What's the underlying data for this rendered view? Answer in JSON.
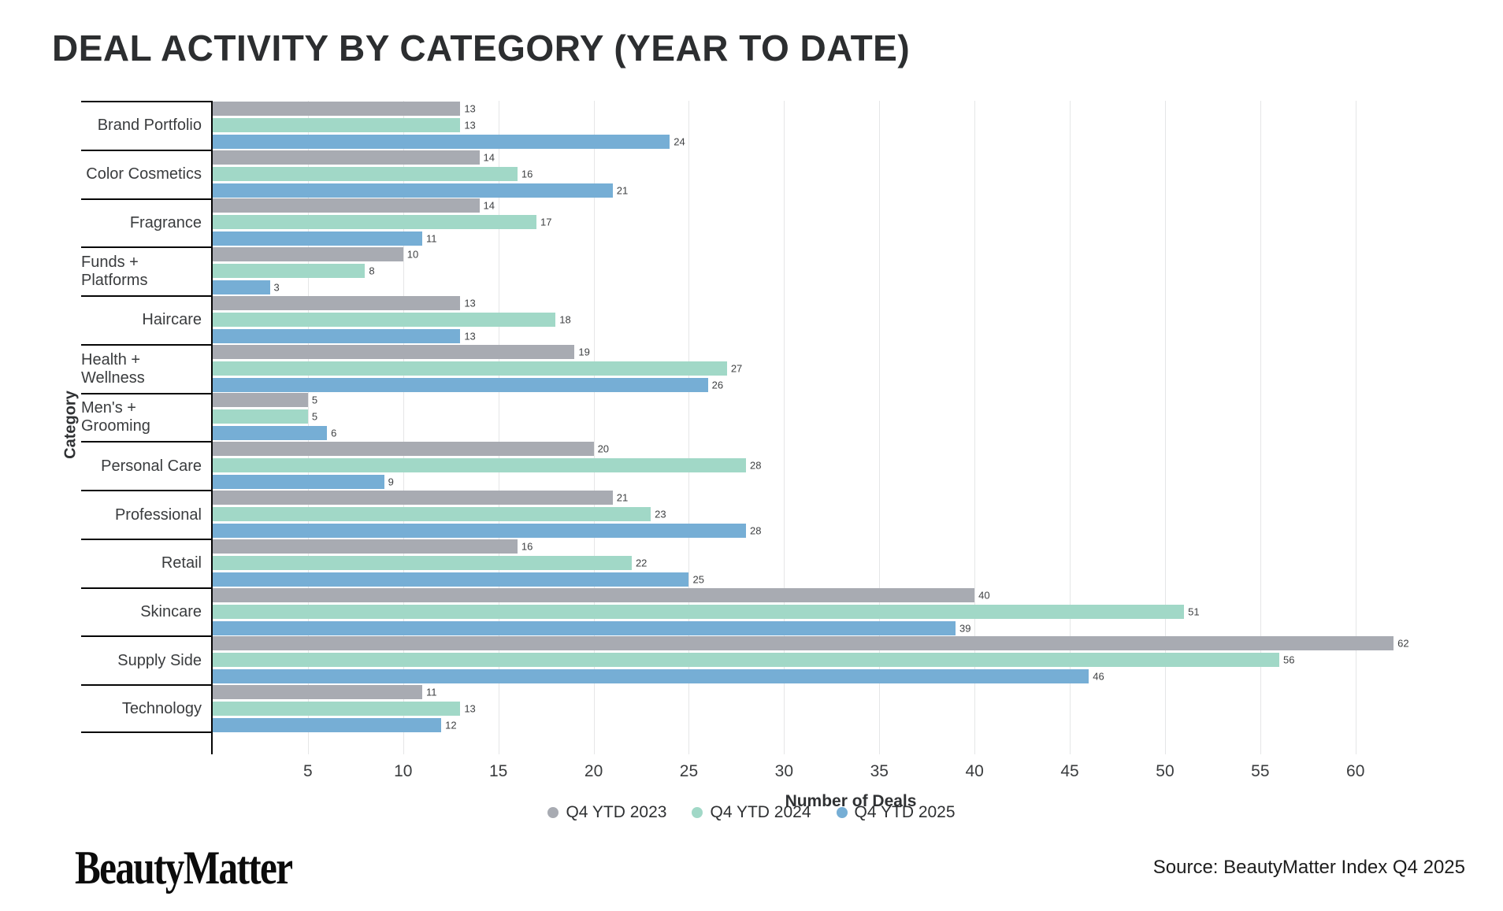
{
  "title": "DEAL ACTIVITY BY CATEGORY (YEAR TO DATE)",
  "chart_data": {
    "type": "bar",
    "orientation": "horizontal",
    "title": "DEAL ACTIVITY BY CATEGORY (YEAR TO DATE)",
    "categories": [
      "Brand Portfolio",
      "Color Cosmetics",
      "Fragrance",
      "Funds + Platforms",
      "Haircare",
      "Health + Wellness",
      "Men's + Grooming",
      "Personal Care",
      "Professional",
      "Retail",
      "Skincare",
      "Supply Side",
      "Technology"
    ],
    "series": [
      {
        "name": "Q4 YTD 2023",
        "color": "#a8abb2",
        "values": [
          13,
          14,
          14,
          10,
          13,
          19,
          5,
          20,
          21,
          16,
          40,
          62,
          11
        ]
      },
      {
        "name": "Q4 YTD 2024",
        "color": "#a1d8c7",
        "values": [
          13,
          16,
          17,
          8,
          18,
          27,
          5,
          28,
          23,
          22,
          51,
          56,
          13
        ]
      },
      {
        "name": "Q4 YTD 2025",
        "color": "#76aed5",
        "values": [
          24,
          21,
          11,
          3,
          13,
          26,
          6,
          9,
          28,
          25,
          39,
          46,
          12
        ]
      }
    ],
    "xlabel": "Number of Deals",
    "ylabel": "Category",
    "xlim": [
      0,
      67
    ],
    "xticks": [
      5,
      10,
      15,
      20,
      25,
      30,
      35,
      40,
      45,
      50,
      55,
      60
    ],
    "grid": true,
    "legend_position": "bottom"
  },
  "footer": {
    "logo_text": "BeautyMatter",
    "source": "Source: BeautyMatter Index Q4 2025"
  }
}
